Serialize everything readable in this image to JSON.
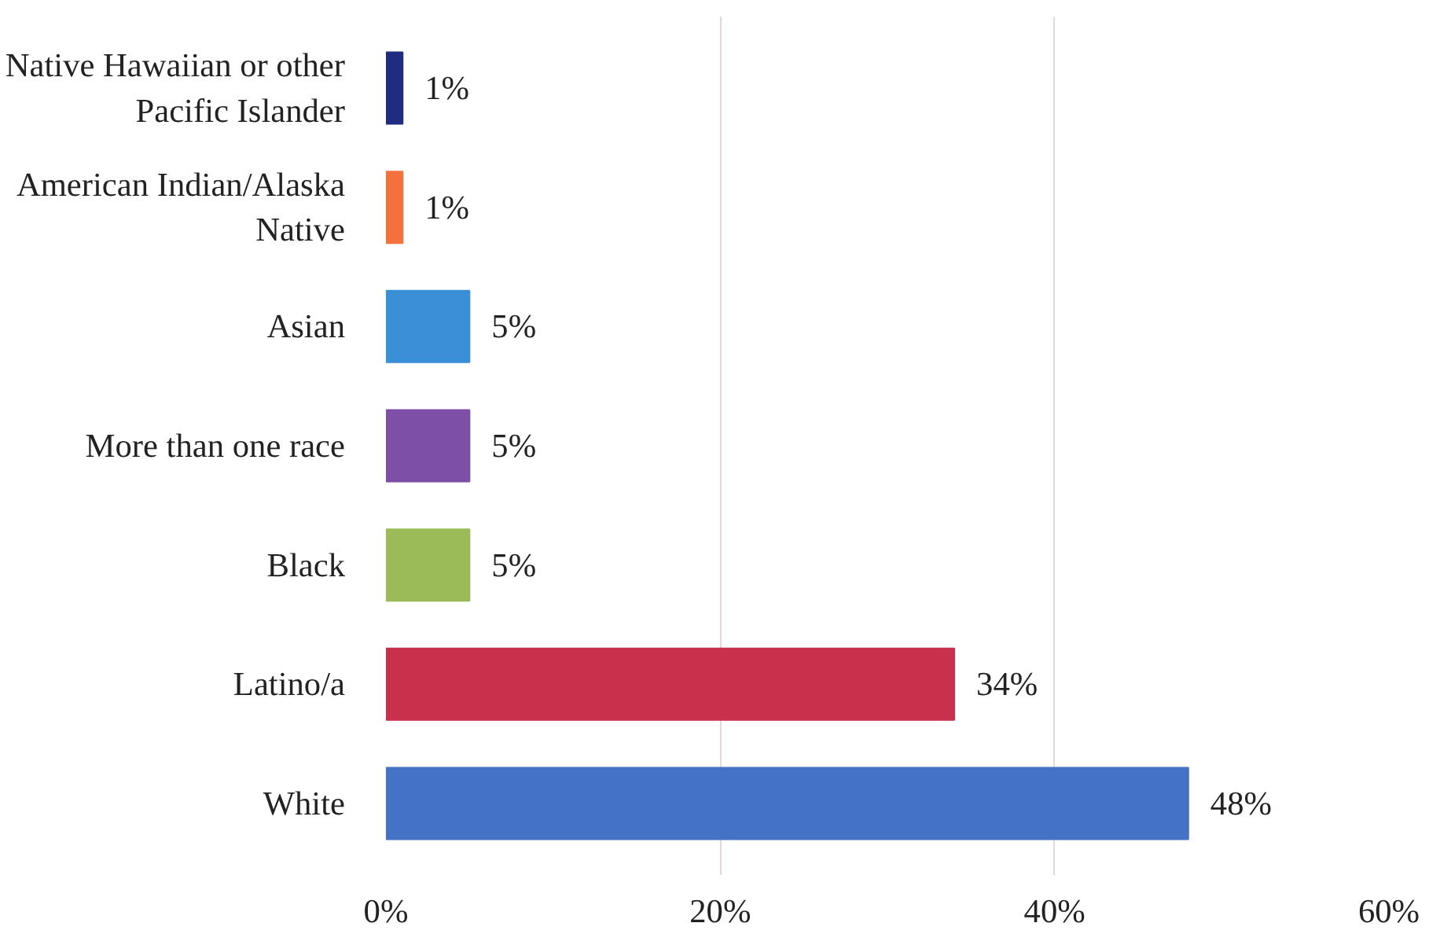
{
  "chart_data": {
    "type": "bar",
    "orientation": "horizontal",
    "categories": [
      "Native Hawaiian or other Pacific Islander",
      "American Indian/Alaska Native",
      "Asian",
      "More than one race",
      "Black",
      "Latino/a",
      "White"
    ],
    "values": [
      1,
      1,
      5,
      5,
      5,
      34,
      48
    ],
    "colors": [
      "#1f2c82",
      "#f4703c",
      "#3b8fd6",
      "#7d4fa6",
      "#9bbb59",
      "#c9304b",
      "#4472c4"
    ],
    "value_labels": [
      "1%",
      "1%",
      "5%",
      "5%",
      "5%",
      "34%",
      "48%"
    ],
    "xlim": [
      0,
      60
    ],
    "xticks": [
      {
        "value": 0,
        "label": "0%"
      },
      {
        "value": 20,
        "label": "20%"
      },
      {
        "value": 40,
        "label": "40%"
      },
      {
        "value": 60,
        "label": "60%"
      }
    ],
    "grid": "x"
  }
}
